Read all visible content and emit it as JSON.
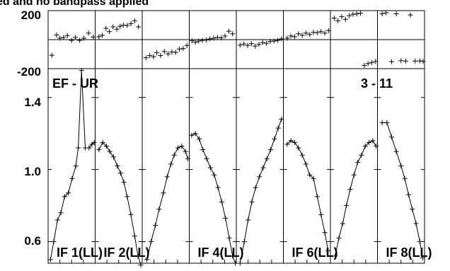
{
  "header": {
    "title_fragment": "ed and no bandpass applied"
  },
  "labels": {
    "baseline_left": "EF - UR",
    "baseline_right": "3 - 11"
  },
  "chart_data": {
    "type": "line",
    "phase_panel": {
      "ylim": [
        -200,
        200
      ],
      "yticks": [
        "200",
        "-200"
      ]
    },
    "amplitude_panel": {
      "ylim": [
        0.48,
        1.56
      ],
      "yticks": [
        "1.4",
        "1.0",
        "0.6"
      ],
      "ytick_values": [
        1.4,
        1.0,
        0.6
      ]
    },
    "xlim": [
      0,
      1
    ],
    "panels": [
      {
        "label": "IF 1(LL)",
        "phase": [
          [
            0.08,
            -108
          ],
          [
            0.18,
            32
          ],
          [
            0.25,
            10
          ],
          [
            0.33,
            15
          ],
          [
            0.41,
            28
          ],
          [
            0.5,
            -5
          ],
          [
            0.58,
            15
          ],
          [
            0.67,
            -5
          ],
          [
            0.76,
            10
          ],
          [
            0.86,
            45
          ],
          [
            0.96,
            18
          ]
        ],
        "amp": [
          [
            0.05,
            0.5
          ],
          [
            0.12,
            0.6
          ],
          [
            0.2,
            0.72
          ],
          [
            0.27,
            0.76
          ],
          [
            0.35,
            0.85
          ],
          [
            0.43,
            0.87
          ],
          [
            0.51,
            0.95
          ],
          [
            0.59,
            1.02
          ],
          [
            0.64,
            1.12
          ],
          [
            0.71,
            1.55
          ],
          [
            0.79,
            1.12
          ],
          [
            0.87,
            1.12
          ],
          [
            0.93,
            1.14
          ],
          [
            0.98,
            1.15
          ]
        ]
      },
      {
        "label": "IF 2(LL)",
        "phase": [
          [
            0.08,
            20
          ],
          [
            0.15,
            30
          ],
          [
            0.23,
            78
          ],
          [
            0.3,
            55
          ],
          [
            0.38,
            88
          ],
          [
            0.46,
            72
          ],
          [
            0.53,
            92
          ],
          [
            0.6,
            100
          ],
          [
            0.68,
            98
          ],
          [
            0.76,
            110
          ],
          [
            0.84,
            130
          ],
          [
            0.92,
            88
          ]
        ],
        "amp": [
          [
            0.08,
            1.11
          ],
          [
            0.16,
            1.15
          ],
          [
            0.24,
            1.13
          ],
          [
            0.31,
            1.1
          ],
          [
            0.39,
            1.07
          ],
          [
            0.47,
            1.02
          ],
          [
            0.54,
            0.98
          ],
          [
            0.61,
            0.93
          ],
          [
            0.68,
            0.85
          ],
          [
            0.76,
            0.75
          ],
          [
            0.84,
            0.63
          ],
          [
            0.91,
            0.52
          ],
          [
            0.97,
            0.47
          ]
        ]
      },
      {
        "label": "",
        "phase": [
          [
            0.08,
            -125
          ],
          [
            0.16,
            -110
          ],
          [
            0.24,
            -118
          ],
          [
            0.31,
            -90
          ],
          [
            0.39,
            -110
          ],
          [
            0.47,
            -82
          ],
          [
            0.55,
            -98
          ],
          [
            0.63,
            -85
          ],
          [
            0.71,
            -88
          ],
          [
            0.79,
            -65
          ],
          [
            0.87,
            -62
          ],
          [
            0.95,
            -40
          ]
        ],
        "amp": [
          [
            0.1,
            0.5
          ],
          [
            0.19,
            0.6
          ],
          [
            0.28,
            0.69
          ],
          [
            0.36,
            0.78
          ],
          [
            0.45,
            0.87
          ],
          [
            0.53,
            0.96
          ],
          [
            0.61,
            1.03
          ],
          [
            0.68,
            1.08
          ],
          [
            0.76,
            1.12
          ],
          [
            0.84,
            1.13
          ],
          [
            0.92,
            1.1
          ],
          [
            0.97,
            1.06
          ]
        ]
      },
      {
        "label": "IF 4(LL)",
        "phase": [
          [
            0.06,
            -8
          ],
          [
            0.13,
            -18
          ],
          [
            0.2,
            -10
          ],
          [
            0.28,
            -5
          ],
          [
            0.36,
            -3
          ],
          [
            0.44,
            5
          ],
          [
            0.52,
            10
          ],
          [
            0.6,
            15
          ],
          [
            0.68,
            12
          ],
          [
            0.76,
            25
          ],
          [
            0.84,
            58
          ],
          [
            0.92,
            40
          ]
        ],
        "amp": [
          [
            0.05,
            1.19
          ],
          [
            0.13,
            1.2
          ],
          [
            0.21,
            1.17
          ],
          [
            0.29,
            1.11
          ],
          [
            0.37,
            1.06
          ],
          [
            0.45,
            1.01
          ],
          [
            0.53,
            0.97
          ],
          [
            0.61,
            0.9
          ],
          [
            0.69,
            0.82
          ],
          [
            0.77,
            0.73
          ],
          [
            0.85,
            0.62
          ],
          [
            0.92,
            0.52
          ],
          [
            0.98,
            0.48
          ]
        ]
      },
      {
        "label": "",
        "phase": [
          [
            0.08,
            -38
          ],
          [
            0.16,
            -30
          ],
          [
            0.24,
            -40
          ],
          [
            0.32,
            -28
          ],
          [
            0.4,
            -45
          ],
          [
            0.48,
            -33
          ],
          [
            0.56,
            -20
          ],
          [
            0.64,
            -25
          ],
          [
            0.72,
            -12
          ],
          [
            0.8,
            -10
          ],
          [
            0.88,
            -5
          ],
          [
            0.96,
            5
          ]
        ],
        "amp": [
          [
            0.08,
            0.48
          ],
          [
            0.17,
            0.6
          ],
          [
            0.25,
            0.72
          ],
          [
            0.33,
            0.82
          ],
          [
            0.41,
            0.9
          ],
          [
            0.49,
            0.96
          ],
          [
            0.57,
            1.01
          ],
          [
            0.65,
            1.06
          ],
          [
            0.73,
            1.11
          ],
          [
            0.81,
            1.17
          ],
          [
            0.89,
            1.23
          ],
          [
            0.96,
            1.28
          ]
        ]
      },
      {
        "label": "IF 6(LL)",
        "phase": [
          [
            0.08,
            10
          ],
          [
            0.16,
            25
          ],
          [
            0.24,
            20
          ],
          [
            0.32,
            40
          ],
          [
            0.4,
            30
          ],
          [
            0.48,
            45
          ],
          [
            0.56,
            35
          ],
          [
            0.64,
            50
          ],
          [
            0.72,
            48
          ],
          [
            0.8,
            55
          ],
          [
            0.88,
            45
          ],
          [
            0.96,
            62
          ]
        ],
        "amp": [
          [
            0.08,
            1.14
          ],
          [
            0.16,
            1.16
          ],
          [
            0.24,
            1.15
          ],
          [
            0.32,
            1.12
          ],
          [
            0.4,
            1.08
          ],
          [
            0.48,
            1.03
          ],
          [
            0.56,
            0.97
          ],
          [
            0.64,
            0.95
          ],
          [
            0.72,
            0.85
          ],
          [
            0.8,
            0.75
          ],
          [
            0.88,
            0.65
          ],
          [
            0.95,
            0.55
          ]
        ]
      },
      {
        "label": "",
        "phase": [
          [
            0.08,
            148
          ],
          [
            0.16,
            130
          ],
          [
            0.24,
            158
          ],
          [
            0.32,
            140
          ],
          [
            0.4,
            165
          ],
          [
            0.48,
            175
          ],
          [
            0.56,
            178
          ],
          [
            0.64,
            182
          ],
          [
            0.72,
            -178
          ],
          [
            0.8,
            -165
          ],
          [
            0.88,
            -158
          ],
          [
            0.96,
            -150
          ]
        ],
        "amp": [
          [
            0.1,
            0.52
          ],
          [
            0.18,
            0.62
          ],
          [
            0.26,
            0.7
          ],
          [
            0.34,
            0.8
          ],
          [
            0.42,
            0.89
          ],
          [
            0.5,
            0.97
          ],
          [
            0.58,
            1.04
          ],
          [
            0.66,
            1.08
          ],
          [
            0.74,
            1.13
          ],
          [
            0.82,
            1.15
          ],
          [
            0.9,
            1.16
          ],
          [
            0.97,
            1.13
          ]
        ]
      },
      {
        "label": "IF 8(LL)",
        "phase": [
          [
            0.1,
            178
          ],
          [
            0.18,
            185
          ],
          [
            0.3,
            -152
          ],
          [
            0.4,
            178
          ],
          [
            0.5,
            -145
          ],
          [
            0.6,
            -148
          ],
          [
            0.7,
            170
          ],
          [
            0.8,
            -148
          ],
          [
            0.9,
            -147
          ],
          [
            0.97,
            -150
          ]
        ],
        "amp": [
          [
            0.1,
            1.26
          ],
          [
            0.2,
            1.26
          ],
          [
            0.3,
            1.18
          ],
          [
            0.4,
            1.1
          ],
          [
            0.5,
            1.02
          ],
          [
            0.58,
            0.95
          ],
          [
            0.66,
            0.86
          ],
          [
            0.74,
            0.78
          ],
          [
            0.82,
            0.7
          ],
          [
            0.9,
            0.6
          ],
          [
            0.96,
            0.51
          ]
        ]
      }
    ]
  }
}
